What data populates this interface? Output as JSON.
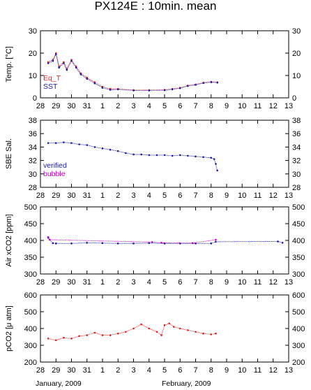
{
  "title": "PX124E : 10min. mean",
  "x_axis": {
    "tick_labels": [
      "28",
      "29",
      "30",
      "31",
      "1",
      "2",
      "3",
      "4",
      "5",
      "6",
      "7",
      "8",
      "9",
      "10",
      "11",
      "12",
      "13"
    ],
    "month_labels": [
      "January, 2009",
      "February, 2009"
    ]
  },
  "colors": {
    "blue": "#1a1aa8",
    "red": "#e02020",
    "magenta": "#c000c0",
    "axis": "#000000"
  },
  "chart_data": [
    {
      "type": "scatter",
      "ylabel": "Temp. [°C]",
      "ylim": [
        0,
        30
      ],
      "yticks": [
        0,
        10,
        20,
        30
      ],
      "x_unit": "days since 28 January 2009",
      "legend": [
        "Eq_T",
        "SST"
      ],
      "series": [
        {
          "name": "Eq_T",
          "color": "#e02020",
          "x": [
            0.5,
            0.8,
            1.0,
            1.2,
            1.5,
            1.7,
            2.0,
            2.3,
            2.6,
            3.0,
            3.5,
            4.0,
            4.5,
            5.0,
            6.0,
            7.0,
            8.0,
            8.5,
            9.0,
            9.5,
            10.0,
            10.5,
            11.0,
            11.4
          ],
          "y": [
            16,
            17,
            20,
            14,
            16,
            13,
            17,
            14,
            11,
            9,
            7,
            5,
            4,
            4,
            3.5,
            3.5,
            3.6,
            4,
            4.5,
            5.5,
            6,
            6.8,
            7.2,
            7
          ]
        },
        {
          "name": "SST",
          "color": "#1a1aa8",
          "x": [
            0.5,
            0.8,
            1.0,
            1.2,
            1.5,
            1.7,
            2.0,
            2.3,
            2.6,
            3.0,
            3.5,
            4.0,
            4.5,
            5.0,
            6.0,
            7.0,
            8.0,
            8.5,
            9.0,
            9.5,
            10.0,
            10.5,
            11.0,
            11.4
          ],
          "y": [
            15.5,
            16.5,
            19.5,
            13.5,
            15.5,
            12.5,
            16.5,
            13.5,
            10.5,
            8.5,
            6.5,
            4.5,
            3.6,
            3.8,
            3.3,
            3.3,
            3.4,
            3.8,
            4.3,
            5.3,
            5.8,
            6.6,
            7.0,
            6.8
          ]
        }
      ]
    },
    {
      "type": "scatter",
      "ylabel": "SBE Sal.",
      "ylim": [
        28,
        38
      ],
      "yticks": [
        28,
        30,
        32,
        34,
        36,
        38
      ],
      "x_unit": "days since 28 January 2009",
      "legend": [
        "verified",
        "bubble"
      ],
      "series": [
        {
          "name": "verified",
          "color": "#1a1aa8",
          "x": [
            0.5,
            1.0,
            1.5,
            2.0,
            2.5,
            3.0,
            3.5,
            4.0,
            4.5,
            5.0,
            5.5,
            6.0,
            6.5,
            7.0,
            7.5,
            8.0,
            8.5,
            9.0,
            9.5,
            10.0,
            10.5,
            11.0,
            11.2,
            11.3,
            11.4
          ],
          "y": [
            34.6,
            34.6,
            34.7,
            34.6,
            34.4,
            34.3,
            34.0,
            33.8,
            33.6,
            33.4,
            33.1,
            32.9,
            32.9,
            32.8,
            32.8,
            32.8,
            32.7,
            32.8,
            32.7,
            32.6,
            32.5,
            32.4,
            32.2,
            31.5,
            30.5
          ]
        },
        {
          "name": "bubble",
          "color": "#c000c0",
          "x": [],
          "y": []
        }
      ]
    },
    {
      "type": "scatter",
      "ylabel": "Air xCO2 [ppm]",
      "ylim": [
        300,
        500
      ],
      "yticks": [
        300,
        350,
        400,
        450,
        500
      ],
      "x_unit": "days since 28 January 2009",
      "series": [
        {
          "name": "verified",
          "color": "#1a1aa8",
          "x": [
            0.5,
            0.8,
            1.0,
            2.0,
            3.0,
            4.0,
            5.0,
            6.0,
            7.0,
            8.0,
            9.0,
            10.0,
            11.0,
            11.3,
            15.3,
            15.6
          ],
          "y": [
            408,
            392,
            391,
            391,
            393,
            392,
            391,
            391,
            392,
            391,
            391,
            391,
            391,
            396,
            397,
            393
          ]
        },
        {
          "name": "bubble",
          "color": "#c000c0",
          "x": [
            0.5,
            0.6,
            7.2,
            7.8,
            9.8,
            11.3
          ],
          "y": [
            410,
            402,
            395,
            393,
            392,
            402
          ]
        }
      ]
    },
    {
      "type": "scatter",
      "ylabel": "pCO2 [μ atm]",
      "ylim": [
        200,
        600
      ],
      "yticks": [
        200,
        300,
        400,
        500,
        600
      ],
      "x_unit": "days since 28 January 2009",
      "series": [
        {
          "name": "pCO2",
          "color": "#e02020",
          "x": [
            0.5,
            1.0,
            1.5,
            2.0,
            2.5,
            3.0,
            3.5,
            4.0,
            4.5,
            5.0,
            5.5,
            6.0,
            6.5,
            7.0,
            7.5,
            7.8,
            8.0,
            8.3,
            8.6,
            9.0,
            9.5,
            10.0,
            10.5,
            11.0,
            11.3
          ],
          "y": [
            340,
            330,
            345,
            340,
            355,
            360,
            375,
            360,
            360,
            370,
            380,
            400,
            425,
            400,
            380,
            360,
            420,
            430,
            410,
            400,
            390,
            380,
            370,
            365,
            370
          ]
        }
      ]
    }
  ]
}
